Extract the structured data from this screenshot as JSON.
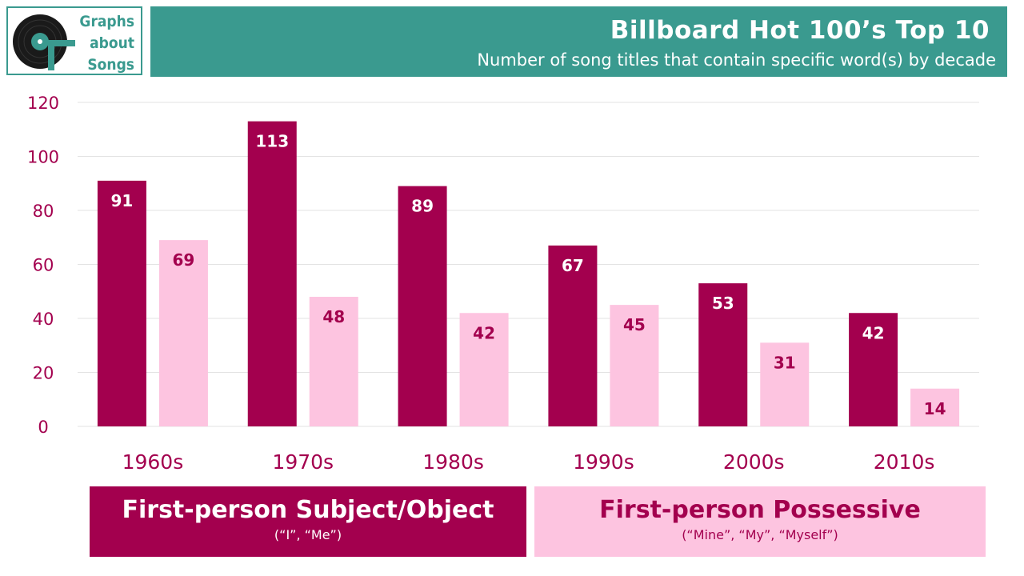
{
  "logo": {
    "line1": "Graphs",
    "line2": "about",
    "line3": "Songs"
  },
  "header": {
    "title": "Billboard Hot 100’s Top 10",
    "subtitle": "Number of song titles that contain specific word(s) by decade"
  },
  "legend": {
    "series1_name": "First-person Subject/Object",
    "series1_detail": "(“I”, “Me”)",
    "series2_name": "First-person Possessive",
    "series2_detail": "(“Mine”, “My”, “Myself”)"
  },
  "colors": {
    "accent": "#3a9a8f",
    "series1": "#a3004e",
    "series2": "#fdc4e0",
    "axis_text": "#a3004e"
  },
  "chart_data": {
    "type": "bar",
    "categories": [
      "1960s",
      "1970s",
      "1980s",
      "1990s",
      "2000s",
      "2010s"
    ],
    "series": [
      {
        "name": "First-person Subject/Object",
        "values": [
          91,
          113,
          89,
          67,
          53,
          42
        ]
      },
      {
        "name": "First-person Possessive",
        "values": [
          69,
          48,
          42,
          45,
          31,
          14
        ]
      }
    ],
    "ylim": [
      0,
      120
    ],
    "yticks": [
      0,
      20,
      40,
      60,
      80,
      100,
      120
    ],
    "grid": true,
    "data_labels": true
  }
}
